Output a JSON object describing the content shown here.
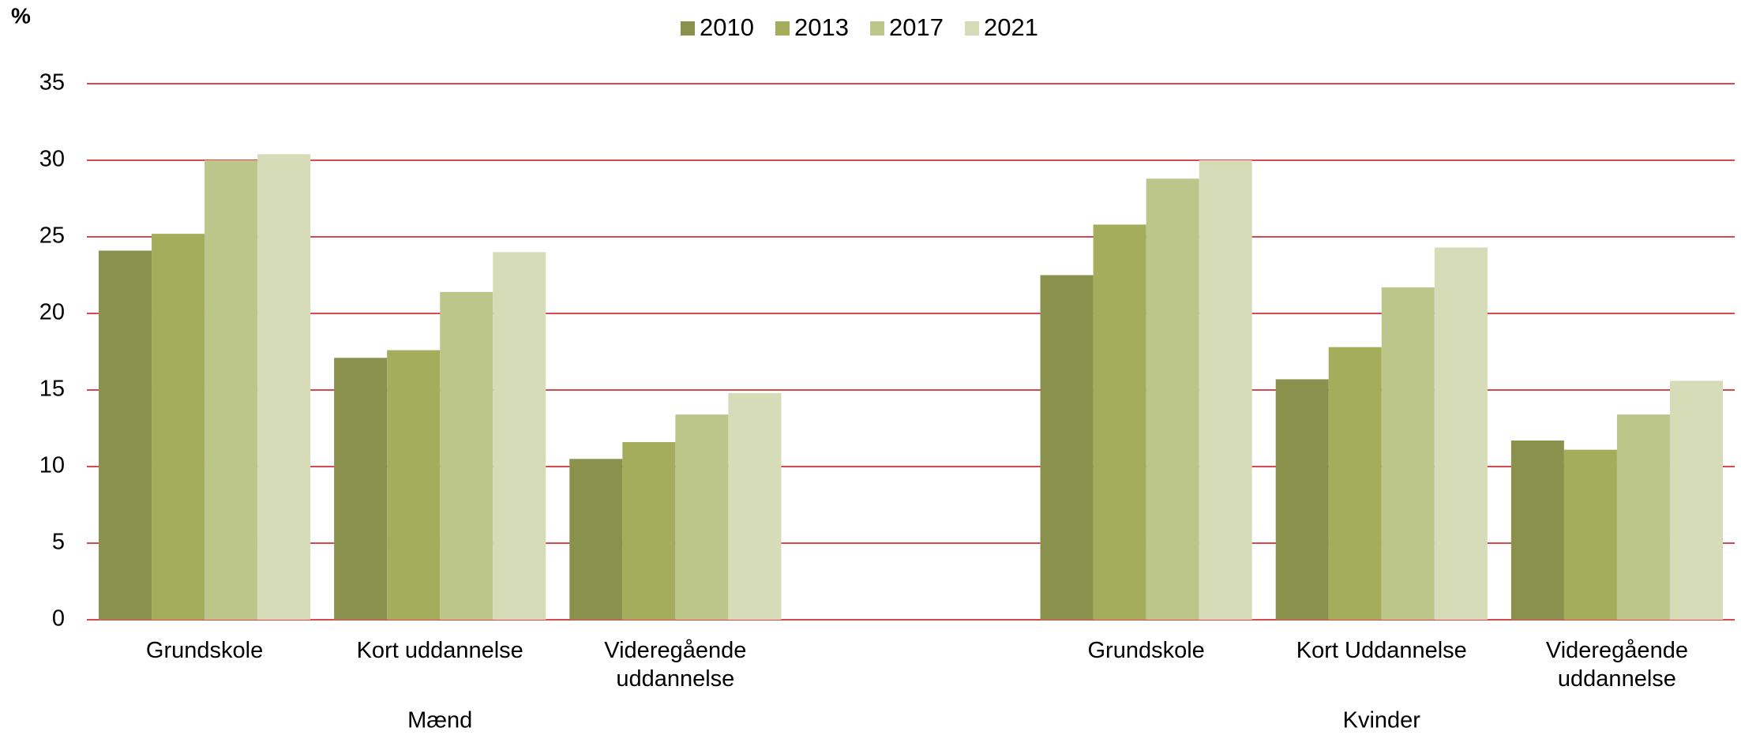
{
  "chart_data": {
    "type": "bar",
    "y_label": "%",
    "categories": [
      "Grundskole",
      "Kort uddannelse",
      "Videregående uddannelse",
      null,
      "Grundskole",
      "Kort Uddannelse",
      "Videregående uddannelse"
    ],
    "group_labels": [
      "Mænd",
      "Kvinder"
    ],
    "series": [
      {
        "name": "2010",
        "color": "#8a914c",
        "values": [
          24.1,
          17.1,
          10.5,
          null,
          22.5,
          15.7,
          11.7
        ]
      },
      {
        "name": "2013",
        "color": "#a3ad5c",
        "values": [
          25.2,
          17.6,
          11.6,
          null,
          25.8,
          17.8,
          11.1
        ]
      },
      {
        "name": "2017",
        "color": "#bdc68a",
        "values": [
          30.0,
          21.4,
          13.4,
          null,
          28.8,
          21.7,
          13.4
        ]
      },
      {
        "name": "2021",
        "color": "#d6dcb8",
        "values": [
          30.4,
          24.0,
          14.8,
          null,
          30.0,
          24.3,
          15.6
        ]
      }
    ],
    "ylim": [
      0,
      35
    ],
    "yticks": [
      0,
      5,
      10,
      15,
      20,
      25,
      30,
      35
    ],
    "grid": true,
    "grid_color": "#d9484e",
    "legend": "top"
  }
}
